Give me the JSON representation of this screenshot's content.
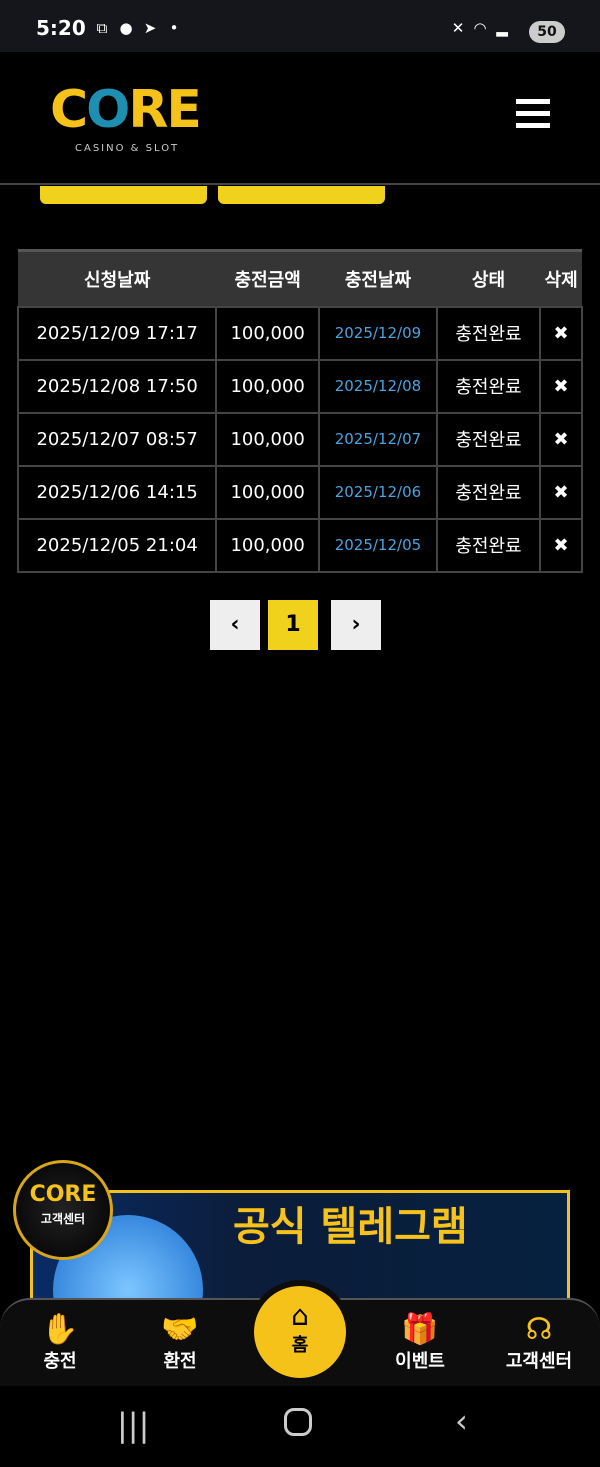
{
  "status_bar": {
    "time": "5:20",
    "battery": "50"
  },
  "header": {
    "logo": "CORE",
    "logo_sub": "CASINO & SLOT"
  },
  "table": {
    "headers": [
      "신청날짜",
      "충전금액",
      "충전날짜",
      "상태",
      "삭제"
    ],
    "rows": [
      [
        "2025/12/09 17:17",
        "100,000",
        "2025/12/09",
        "충전완료"
      ],
      [
        "2025/12/08 17:50",
        "100,000",
        "2025/12/08",
        "충전완료"
      ],
      [
        "2025/12/07 08:57",
        "100,000",
        "2025/12/07",
        "충전완료"
      ],
      [
        "2025/12/06 14:15",
        "100,000",
        "2025/12/06",
        "충전완료"
      ],
      [
        "2025/12/05 21:04",
        "100,000",
        "2025/12/05",
        "충전완료"
      ]
    ]
  },
  "pagination": {
    "current": "1"
  },
  "banner": {
    "title": "공식 텔레그램",
    "badge_logo": "CORE",
    "badge_label": "고객센터"
  },
  "bottom_nav": [
    {
      "label": "충전"
    },
    {
      "label": "환전"
    },
    {
      "label": "홈"
    },
    {
      "label": "이벤트"
    },
    {
      "label": "고객센터"
    }
  ],
  "colors": {
    "accent": "#f5c21a",
    "link": "#4aa3df"
  }
}
